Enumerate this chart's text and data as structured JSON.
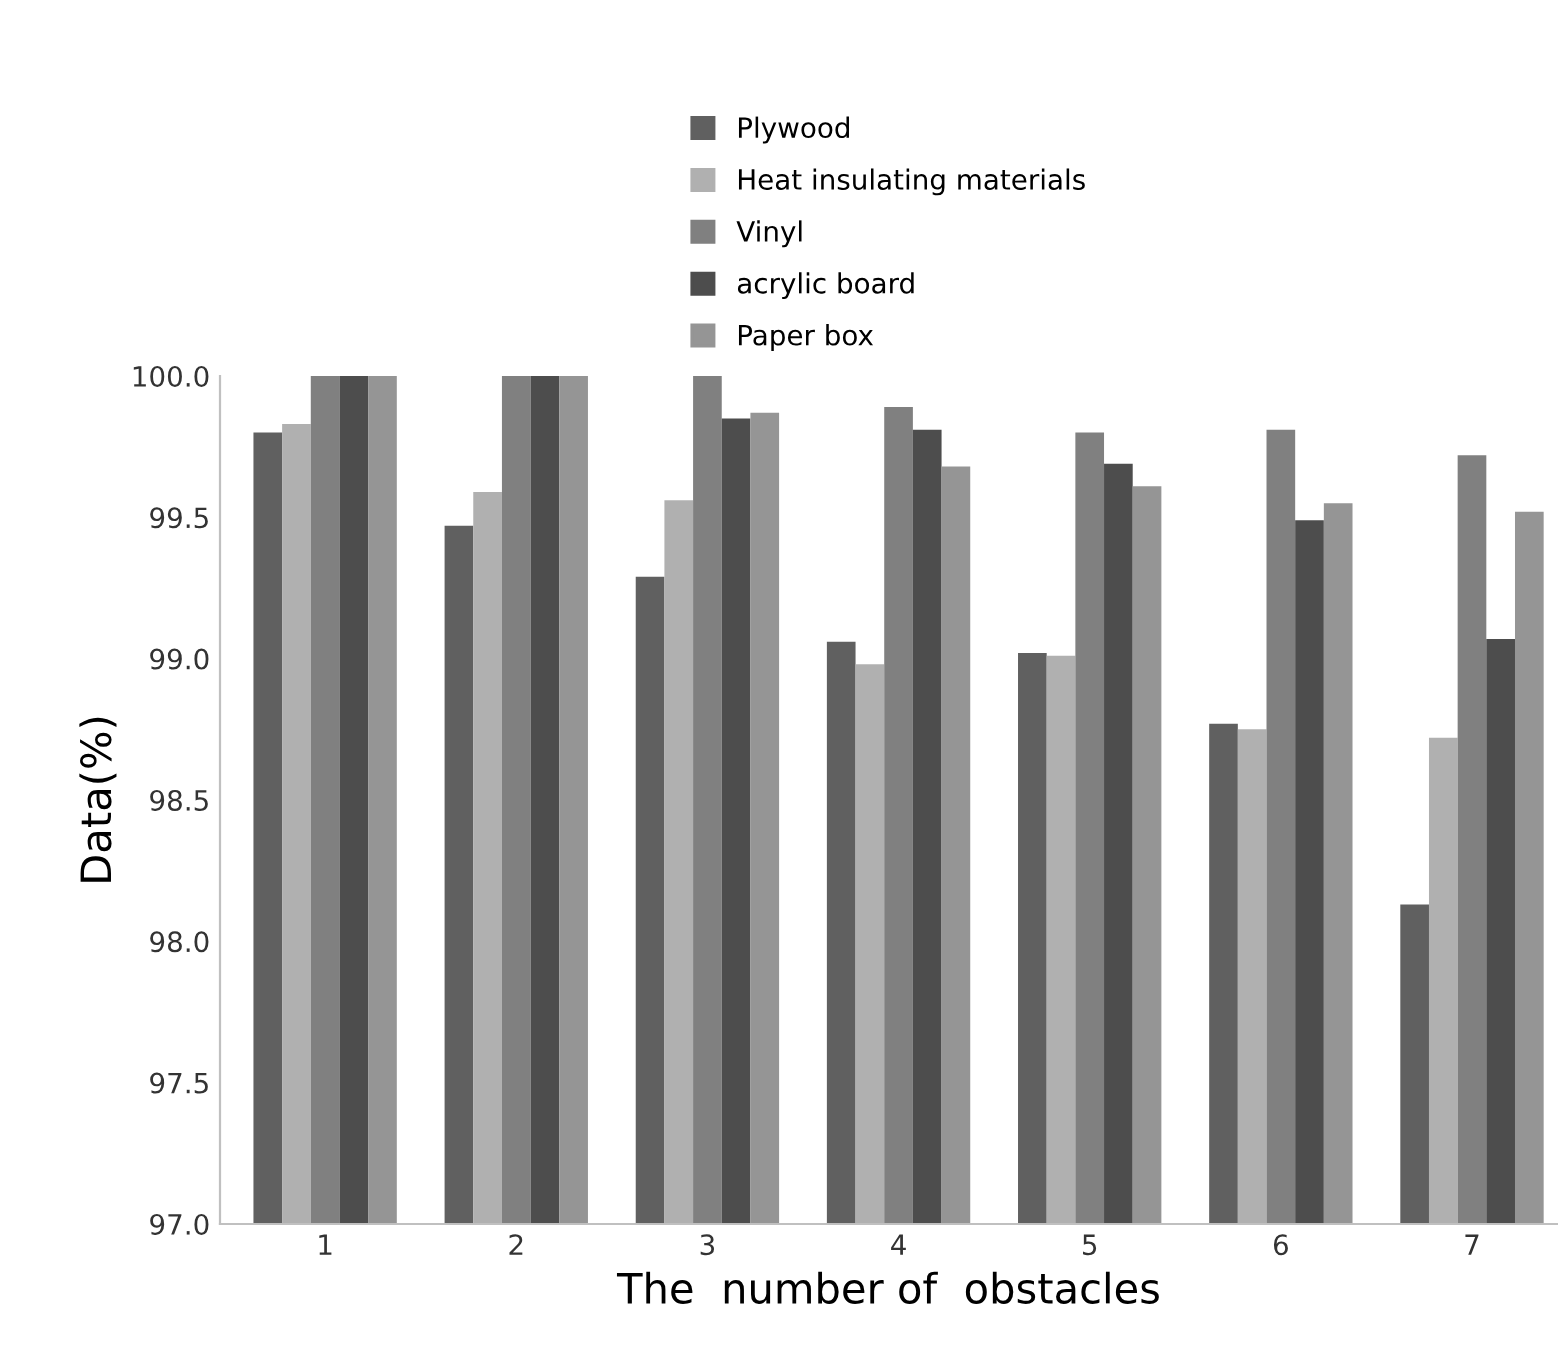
{
  "chart_data": {
    "type": "bar",
    "xlabel": "The  number of  obstacles",
    "ylabel": "Data(%)",
    "categories": [
      "1",
      "2",
      "3",
      "4",
      "5",
      "6",
      "7"
    ],
    "series": [
      {
        "name": "Plywood",
        "color": "#606060",
        "values": [
          99.8,
          99.47,
          99.29,
          99.06,
          99.02,
          98.77,
          98.13
        ]
      },
      {
        "name": "Heat insulating materials",
        "color": "#b0b0b0",
        "values": [
          99.83,
          99.59,
          99.56,
          98.98,
          99.01,
          98.75,
          98.72
        ]
      },
      {
        "name": "Vinyl",
        "color": "#808080",
        "values": [
          100.0,
          100.0,
          100.0,
          99.89,
          99.8,
          99.81,
          99.72
        ]
      },
      {
        "name": "acrylic board",
        "color": "#4d4d4d",
        "values": [
          100.0,
          100.0,
          99.85,
          99.81,
          99.69,
          99.49,
          99.07
        ]
      },
      {
        "name": "Paper box",
        "color": "#959595",
        "values": [
          100.0,
          100.0,
          99.87,
          99.68,
          99.61,
          99.55,
          99.52
        ]
      }
    ],
    "ylim": [
      97.0,
      100.0
    ],
    "yticks": [
      {
        "value": 97.0,
        "label": "97.0"
      },
      {
        "value": 97.5,
        "label": "97.5"
      },
      {
        "value": 98.0,
        "label": "98.0"
      },
      {
        "value": 98.5,
        "label": "98.5"
      },
      {
        "value": 99.0,
        "label": "99.0"
      },
      {
        "value": 99.5,
        "label": "99.5"
      },
      {
        "value": 100.0,
        "label": "100.0"
      }
    ],
    "grid": false,
    "legend": "top"
  }
}
